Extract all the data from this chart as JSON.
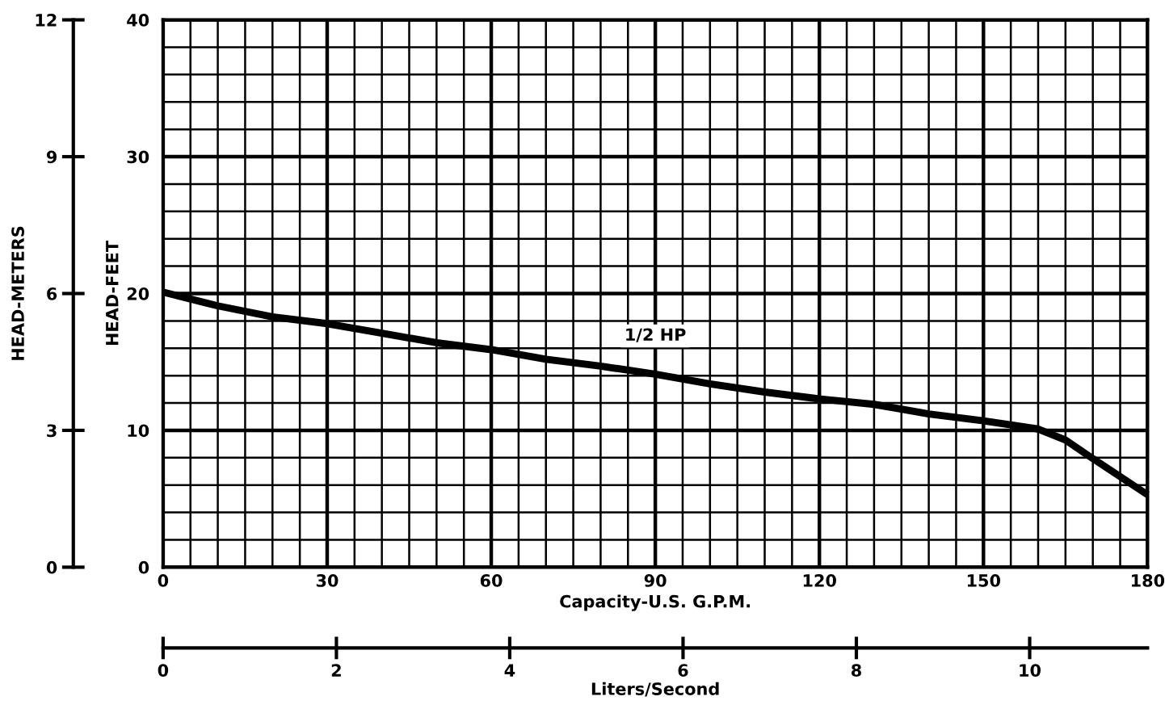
{
  "chart_data": {
    "type": "line",
    "x": [
      0,
      10,
      20,
      30,
      40,
      50,
      60,
      70,
      80,
      90,
      100,
      110,
      120,
      130,
      140,
      150,
      160,
      165,
      169,
      180
    ],
    "series": [
      {
        "name": "1/2 HP",
        "color": "#000000",
        "values": [
          20.1,
          19.1,
          18.3,
          17.8,
          17.1,
          16.4,
          15.9,
          15.2,
          14.7,
          14.1,
          13.4,
          12.8,
          12.3,
          11.9,
          11.2,
          10.7,
          10.1,
          9.3,
          8.2,
          5.3
        ]
      }
    ],
    "xlim": [
      0,
      180
    ],
    "xticks": [
      0,
      30,
      60,
      90,
      120,
      150,
      180
    ],
    "ylim": [
      0,
      40
    ],
    "yticks": [
      0,
      10,
      20,
      30,
      40
    ],
    "xlabel": "Capacity-U.S. G.P.M.",
    "ylabel": "HEAD-FEET",
    "y2lim": [
      0,
      12
    ],
    "y2ticks": [
      0,
      3,
      6,
      9,
      12
    ],
    "y2label": "HEAD-METERS",
    "x2lim": [
      0,
      11.36
    ],
    "x2ticks": [
      0,
      2,
      4,
      6,
      8,
      10
    ],
    "x2label": "Liters/Second",
    "grid": true,
    "legend": false,
    "marker": "none",
    "line_style": "solid"
  }
}
